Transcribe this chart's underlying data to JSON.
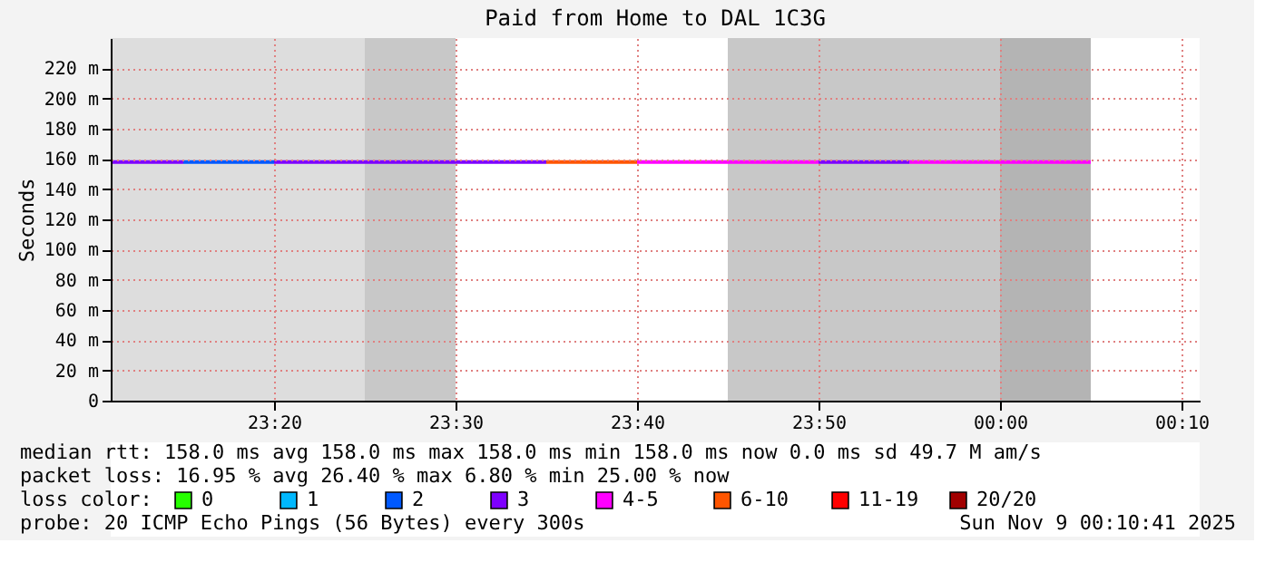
{
  "chart_data": {
    "type": "line",
    "title": "Paid from Home to DAL 1C3G",
    "ylabel": "Seconds",
    "legend_title": "loss color:",
    "legend": "bottom",
    "grid": true,
    "line_style": "solid",
    "xlim": [
      "2025-11-08T23:11",
      "2025-11-09T00:11"
    ],
    "xticks": [
      {
        "value": "2025-11-08T23:20",
        "label": "23:20"
      },
      {
        "value": "2025-11-08T23:30",
        "label": "23:30"
      },
      {
        "value": "2025-11-08T23:40",
        "label": "23:40"
      },
      {
        "value": "2025-11-08T23:50",
        "label": "23:50"
      },
      {
        "value": "2025-11-09T00:00",
        "label": "00:00"
      },
      {
        "value": "2025-11-09T00:10",
        "label": "00:10"
      }
    ],
    "ylim": [
      0,
      240
    ],
    "yticks": [
      0,
      {
        "value": 20,
        "label": "20 m"
      },
      {
        "value": 40,
        "label": "40 m"
      },
      {
        "value": 60,
        "label": "60 m"
      },
      {
        "value": 80,
        "label": "80 m"
      },
      {
        "value": 100,
        "label": "100 m"
      },
      {
        "value": 120,
        "label": "120 m"
      },
      {
        "value": 140,
        "label": "140 m"
      },
      {
        "value": 160,
        "label": "160 m"
      },
      {
        "value": 180,
        "label": "180 m"
      },
      {
        "value": 200,
        "label": "200 m"
      },
      {
        "value": 220,
        "label": "220 m"
      }
    ],
    "bands": [
      {
        "axis": "x",
        "from": "2025-11-08T23:11",
        "to": "2025-11-08T23:25",
        "color": "#dddddd"
      },
      {
        "axis": "x",
        "from": "2025-11-08T23:25",
        "to": "2025-11-08T23:30",
        "color": "#c8c8c8"
      },
      {
        "axis": "x",
        "from": "2025-11-08T23:45",
        "to": "2025-11-09T00:00",
        "color": "#c8c8c8"
      },
      {
        "axis": "x",
        "from": "2025-11-09T00:00",
        "to": "2025-11-09T00:05",
        "color": "#b4b4b4"
      }
    ],
    "series": [
      {
        "name": "0",
        "color": "#26ff00"
      },
      {
        "name": "1",
        "color": "#00b8ff"
      },
      {
        "name": "2",
        "color": "#0059ff",
        "x": [
          "2025-11-08T23:15",
          "2025-11-08T23:20"
        ],
        "values": [
          158,
          158
        ]
      },
      {
        "name": "3",
        "color": "#7e00ff",
        "x": [
          "2025-11-08T23:11",
          "2025-11-08T23:15",
          "2025-11-08T23:17",
          "2025-11-08T23:20",
          "2025-11-08T23:25",
          "2025-11-08T23:30",
          "2025-11-08T23:35",
          "2025-11-08T23:42",
          "2025-11-08T23:50",
          "2025-11-08T23:55"
        ],
        "values": [
          158,
          158,
          null,
          158,
          158,
          158,
          158,
          null,
          158,
          158
        ]
      },
      {
        "name": "4-5",
        "color": "#ff00ff",
        "x": [
          "2025-11-08T23:40",
          "2025-11-08T23:45",
          "2025-11-08T23:50",
          "2025-11-08T23:52",
          "2025-11-08T23:55",
          "2025-11-09T00:00",
          "2025-11-09T00:05"
        ],
        "values": [
          158,
          158,
          158,
          null,
          158,
          158,
          158
        ]
      },
      {
        "name": "6-10",
        "color": "#ff5500",
        "x": [
          "2025-11-08T23:35",
          "2025-11-08T23:40"
        ],
        "values": [
          158,
          158
        ]
      },
      {
        "name": "11-19",
        "color": "#ff0000"
      },
      {
        "name": "20/20",
        "color": "#a10000"
      }
    ],
    "annotations": [
      "median rtt: 158.0 ms avg 158.0 ms max 158.0 ms min 158.0 ms now 0.0 ms sd 49.7 M am/s",
      "packet loss: 16.95 % avg 26.40 % max 6.80 % min 25.00 % now",
      "probe: 20 ICMP Echo Pings (56 Bytes) every 300s",
      "Sun Nov 9 00:10:41 2025"
    ]
  }
}
